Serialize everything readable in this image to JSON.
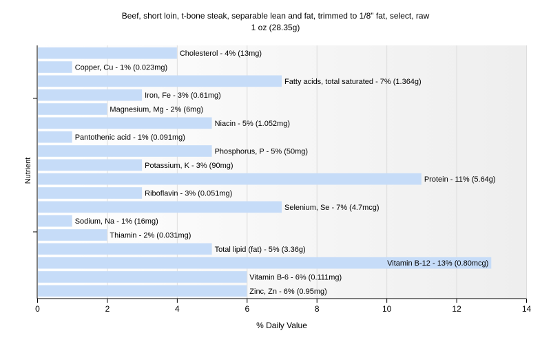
{
  "chart_data": {
    "type": "bar",
    "orientation": "horizontal",
    "title": "Beef, short loin, t-bone steak, separable lean and fat, trimmed to 1/8\" fat, select, raw",
    "subtitle": "1 oz (28.35g)",
    "xlabel": "% Daily Value",
    "ylabel": "Nutrient",
    "xlim": [
      0,
      14
    ],
    "xticks": [
      0,
      2,
      4,
      6,
      8,
      10,
      12,
      14
    ],
    "grid": true,
    "bar_color": "#c6dcf8",
    "categories": [
      "Cholesterol",
      "Copper, Cu",
      "Fatty acids, total saturated",
      "Iron, Fe",
      "Magnesium, Mg",
      "Niacin",
      "Pantothenic acid",
      "Phosphorus, P",
      "Potassium, K",
      "Protein",
      "Riboflavin",
      "Selenium, Se",
      "Sodium, Na",
      "Thiamin",
      "Total lipid (fat)",
      "Vitamin B-12",
      "Vitamin B-6",
      "Zinc, Zn"
    ],
    "values": [
      4,
      1,
      7,
      3,
      2,
      5,
      1,
      5,
      3,
      11,
      3,
      7,
      1,
      2,
      5,
      13,
      6,
      6
    ],
    "labels": [
      "Cholesterol - 4% (13mg)",
      "Copper, Cu - 1% (0.023mg)",
      "Fatty acids, total saturated - 7% (1.364g)",
      "Iron, Fe - 3% (0.61mg)",
      "Magnesium, Mg - 2% (6mg)",
      "Niacin - 5% (1.052mg)",
      "Pantothenic acid - 1% (0.091mg)",
      "Phosphorus, P - 5% (50mg)",
      "Potassium, K - 3% (90mg)",
      "Protein - 11% (5.64g)",
      "Riboflavin - 3% (0.051mg)",
      "Selenium, Se - 7% (4.7mcg)",
      "Sodium, Na - 1% (16mg)",
      "Thiamin - 2% (0.031mg)",
      "Total lipid (fat) - 5% (3.36g)",
      "Vitamin B-12 - 13% (0.80mcg)",
      "Vitamin B-6 - 6% (0.111mg)",
      "Zinc, Zn - 6% (0.95mg)"
    ]
  }
}
